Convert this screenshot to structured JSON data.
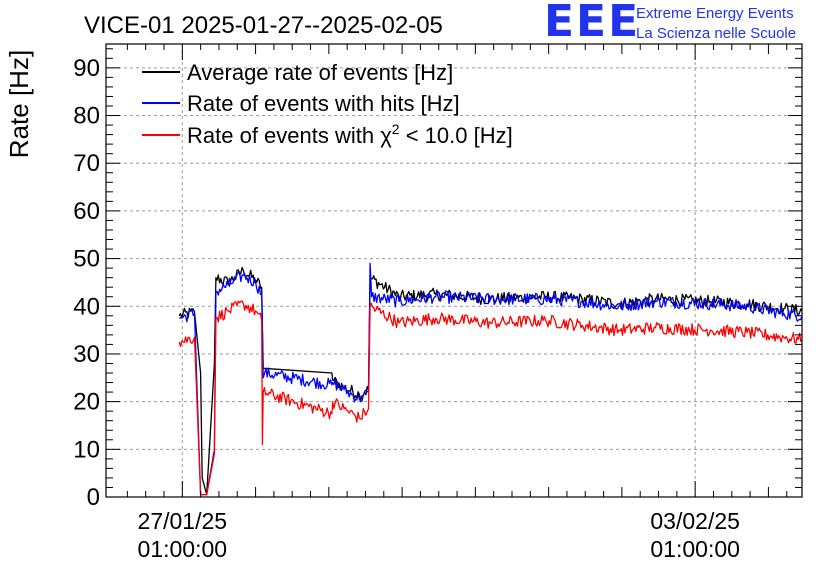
{
  "chart_data": {
    "type": "line",
    "title": "VICE-01 2025-01-27--2025-02-05",
    "ylabel": "Rate [Hz]",
    "xlabel": "",
    "ylim": [
      0,
      95
    ],
    "yticks": [
      0,
      10,
      20,
      30,
      40,
      50,
      60,
      70,
      80,
      90
    ],
    "x_ticks": [
      {
        "x": "2025-01-27 01:00:00",
        "date": "27/01/25",
        "time": "01:00:00"
      },
      {
        "x": "2025-02-03 01:00:00",
        "date": "03/02/25",
        "time": "01:00:00"
      }
    ],
    "xlim": [
      "2025-01-26 00:00:00",
      "2025-02-04 12:00:00"
    ],
    "grid": true,
    "legend_position": "top-left",
    "series": [
      {
        "name": "Average rate of events [Hz]",
        "color": "#000000",
        "points": [
          [
            "2025-01-27 00:00:00",
            38.0
          ],
          [
            "2025-01-27 05:00:00",
            38.8
          ],
          [
            "2025-01-27 07:00:00",
            26.0
          ],
          [
            "2025-01-27 07:30:00",
            4.0
          ],
          [
            "2025-01-27 09:00:00",
            0.5
          ],
          [
            "2025-01-27 11:30:00",
            28.0
          ],
          [
            "2025-01-27 12:00:00",
            46.0
          ],
          [
            "2025-01-27 16:00:00",
            45.0
          ],
          [
            "2025-01-27 21:00:00",
            47.5
          ],
          [
            "2025-01-28 01:00:00",
            45.5
          ],
          [
            "2025-01-28 03:00:00",
            44.0
          ],
          [
            "2025-01-28 03:30:00",
            27.0
          ],
          [
            "2025-01-29 02:00:00",
            26.0
          ],
          [
            "2025-01-29 02:15:00",
            24.5
          ],
          [
            "2025-01-29 06:00:00",
            23.0
          ],
          [
            "2025-01-29 11:00:00",
            21.5
          ],
          [
            "2025-01-29 14:00:00",
            22.5
          ],
          [
            "2025-01-29 14:30:00",
            46.0
          ],
          [
            "2025-01-30 00:00:00",
            42.0
          ],
          [
            "2025-01-30 12:00:00",
            42.5
          ],
          [
            "2025-01-31 06:00:00",
            41.5
          ],
          [
            "2025-02-01 00:00:00",
            42.0
          ],
          [
            "2025-02-01 12:00:00",
            41.5
          ],
          [
            "2025-02-02 00:00:00",
            40.5
          ],
          [
            "2025-02-02 12:00:00",
            41.5
          ],
          [
            "2025-02-03 06:00:00",
            41.0
          ],
          [
            "2025-02-03 18:00:00",
            40.5
          ],
          [
            "2025-02-04 06:00:00",
            39.5
          ],
          [
            "2025-02-04 12:00:00",
            39.0
          ]
        ]
      },
      {
        "name": "Rate of events with hits [Hz]",
        "color": "#0000ff",
        "points": [
          [
            "2025-01-27 00:00:00",
            37.5
          ],
          [
            "2025-01-27 05:00:00",
            38.5
          ],
          [
            "2025-01-27 07:00:00",
            0.5
          ],
          [
            "2025-01-27 09:00:00",
            0.5
          ],
          [
            "2025-01-27 11:30:00",
            10.0
          ],
          [
            "2025-01-27 12:00:00",
            43.0
          ],
          [
            "2025-01-27 16:00:00",
            44.5
          ],
          [
            "2025-01-27 21:00:00",
            46.5
          ],
          [
            "2025-01-28 01:00:00",
            45.0
          ],
          [
            "2025-01-28 03:00:00",
            42.5
          ],
          [
            "2025-01-28 03:30:00",
            25.0
          ],
          [
            "2025-01-28 04:00:00",
            26.0
          ],
          [
            "2025-01-29 02:00:00",
            23.5
          ],
          [
            "2025-01-29 02:15:00",
            24.0
          ],
          [
            "2025-01-29 06:00:00",
            22.5
          ],
          [
            "2025-01-29 11:00:00",
            20.5
          ],
          [
            "2025-01-29 14:00:00",
            22.0
          ],
          [
            "2025-01-29 14:30:00",
            49.0
          ],
          [
            "2025-01-29 15:00:00",
            42.0
          ],
          [
            "2025-01-30 00:00:00",
            41.0
          ],
          [
            "2025-01-30 12:00:00",
            42.0
          ],
          [
            "2025-01-31 06:00:00",
            41.5
          ],
          [
            "2025-02-01 00:00:00",
            41.5
          ],
          [
            "2025-02-01 12:00:00",
            41.0
          ],
          [
            "2025-02-02 00:00:00",
            40.0
          ],
          [
            "2025-02-02 12:00:00",
            41.0
          ],
          [
            "2025-02-03 06:00:00",
            40.5
          ],
          [
            "2025-02-03 18:00:00",
            40.0
          ],
          [
            "2025-02-04 06:00:00",
            38.5
          ],
          [
            "2025-02-04 12:00:00",
            38.0
          ]
        ]
      },
      {
        "name_prefix": "Rate of events with ",
        "name_symbol": "χ",
        "name_sup": "2",
        "name_suffix": " < 10.0 [Hz]",
        "color": "#ff0000",
        "points": [
          [
            "2025-01-27 00:00:00",
            32.5
          ],
          [
            "2025-01-27 05:00:00",
            33.5
          ],
          [
            "2025-01-27 07:00:00",
            0.5
          ],
          [
            "2025-01-27 09:00:00",
            0.5
          ],
          [
            "2025-01-27 11:30:00",
            9.0
          ],
          [
            "2025-01-27 12:00:00",
            37.5
          ],
          [
            "2025-01-27 16:00:00",
            39.0
          ],
          [
            "2025-01-27 21:00:00",
            40.5
          ],
          [
            "2025-01-28 01:00:00",
            39.0
          ],
          [
            "2025-01-28 03:00:00",
            37.0
          ],
          [
            "2025-01-28 03:15:00",
            11.0
          ],
          [
            "2025-01-28 03:30:00",
            22.0
          ],
          [
            "2025-01-29 02:00:00",
            17.5
          ],
          [
            "2025-01-29 02:15:00",
            20.0
          ],
          [
            "2025-01-29 06:00:00",
            18.5
          ],
          [
            "2025-01-29 11:00:00",
            16.5
          ],
          [
            "2025-01-29 14:00:00",
            18.5
          ],
          [
            "2025-01-29 14:30:00",
            40.0
          ],
          [
            "2025-01-30 00:00:00",
            36.5
          ],
          [
            "2025-01-30 12:00:00",
            37.5
          ],
          [
            "2025-01-31 06:00:00",
            36.5
          ],
          [
            "2025-02-01 00:00:00",
            37.0
          ],
          [
            "2025-02-01 12:00:00",
            36.0
          ],
          [
            "2025-02-02 00:00:00",
            35.0
          ],
          [
            "2025-02-02 12:00:00",
            35.5
          ],
          [
            "2025-02-03 06:00:00",
            35.0
          ],
          [
            "2025-02-03 18:00:00",
            34.5
          ],
          [
            "2025-02-04 06:00:00",
            33.5
          ],
          [
            "2025-02-04 12:00:00",
            33.0
          ]
        ]
      }
    ]
  },
  "logo": {
    "mark": "EEE",
    "line1": "Extreme Energy Events",
    "line2": "La Scienza nelle Scuole",
    "color": "#2233ee"
  }
}
